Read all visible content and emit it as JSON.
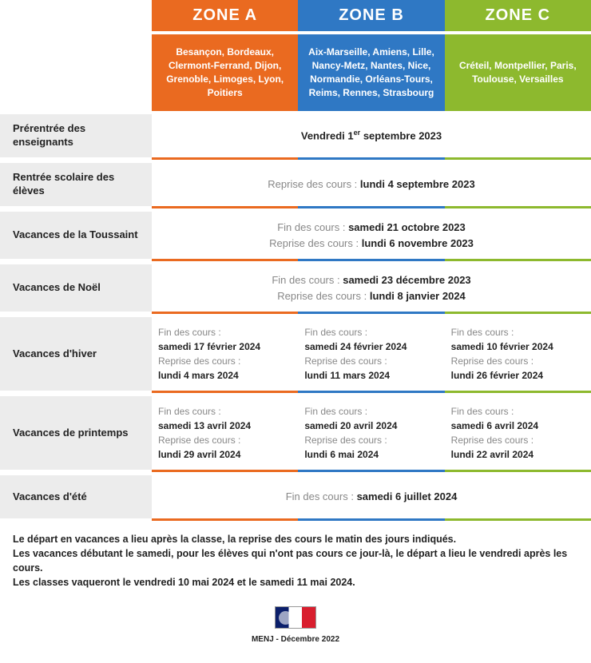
{
  "colors": {
    "zoneA": "#ea6a20",
    "zoneB": "#2f78c4",
    "zoneC": "#8db92e",
    "rowLabelBg": "#ececec",
    "muted": "#888888",
    "text": "#222222"
  },
  "zones": {
    "a": {
      "name": "ZONE A",
      "cities": "Besançon, Bordeaux, Clermont-Ferrand, Dijon, Grenoble, Limoges, Lyon, Poitiers"
    },
    "b": {
      "name": "ZONE B",
      "cities": "Aix-Marseille, Amiens, Lille, Nancy-Metz, Nantes, Nice, Normandie, Orléans-Tours, Reims, Rennes, Strasbourg"
    },
    "c": {
      "name": "ZONE C",
      "cities": "Créteil, Montpellier, Paris, Toulouse, Versailles"
    }
  },
  "rows": {
    "prerentree": {
      "label": "Prérentrée des enseignants",
      "merged_html": "Vendredi 1<sup>er</sup> septembre 2023"
    },
    "rentree": {
      "label": "Rentrée scolaire des élèves",
      "prefix": "Reprise des cours : ",
      "value": "lundi 4 septembre 2023"
    },
    "toussaint": {
      "label": "Vacances de la Toussaint",
      "fin_label": "Fin des cours : ",
      "fin": "samedi 21 octobre 2023",
      "reprise_label": "Reprise des cours : ",
      "reprise": "lundi 6 novembre 2023"
    },
    "noel": {
      "label": "Vacances de Noël",
      "fin_label": "Fin des cours : ",
      "fin": "samedi 23 décembre 2023",
      "reprise_label": "Reprise des cours : ",
      "reprise": "lundi 8 janvier 2024"
    },
    "hiver": {
      "label": "Vacances d'hiver",
      "a": {
        "fin_label": "Fin des cours :",
        "fin": "samedi 17 février 2024",
        "reprise_label": "Reprise des cours :",
        "reprise": "lundi 4 mars 2024"
      },
      "b": {
        "fin_label": "Fin des cours :",
        "fin": "samedi 24 février 2024",
        "reprise_label": "Reprise des cours :",
        "reprise": "lundi 11 mars 2024"
      },
      "c": {
        "fin_label": "Fin des cours :",
        "fin": "samedi 10 février 2024",
        "reprise_label": "Reprise des cours :",
        "reprise": "lundi 26 février 2024"
      }
    },
    "printemps": {
      "label": "Vacances de printemps",
      "a": {
        "fin_label": "Fin des cours :",
        "fin": "samedi 13 avril 2024",
        "reprise_label": "Reprise des cours :",
        "reprise": "lundi 29 avril 2024"
      },
      "b": {
        "fin_label": "Fin des cours :",
        "fin": "samedi 20 avril 2024",
        "reprise_label": "Reprise des cours :",
        "reprise": "lundi 6 mai 2024"
      },
      "c": {
        "fin_label": "Fin des cours :",
        "fin": "samedi 6 avril 2024",
        "reprise_label": "Reprise des cours :",
        "reprise": "lundi 22 avril 2024"
      }
    },
    "ete": {
      "label": "Vacances d'été",
      "fin_label": "Fin des cours : ",
      "fin": "samedi 6 juillet 2024"
    }
  },
  "footnotes": [
    "Le départ en vacances a lieu après la classe, la reprise des cours le matin des jours indiqués.",
    "Les vacances débutant le samedi, pour les élèves qui n'ont pas cours ce jour-là, le départ a lieu le vendredi après les cours.",
    "Les classes vaqueront le vendredi 10 mai 2024 et le samedi 11 mai 2024."
  ],
  "footer": "MENJ - Décembre 2022"
}
